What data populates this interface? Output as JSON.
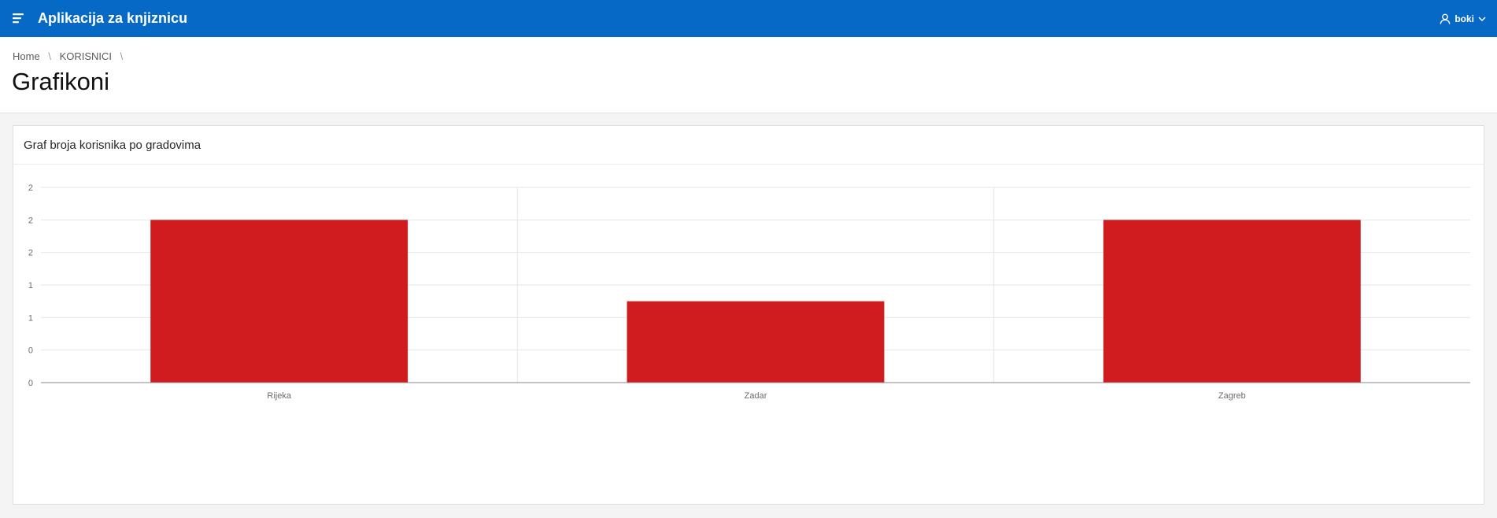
{
  "app": {
    "title": "Aplikacija za knjiznicu",
    "user": "boki",
    "header_color": "#0669c6"
  },
  "breadcrumb": {
    "items": [
      "Home",
      "KORISNICI"
    ]
  },
  "page": {
    "title": "Grafikoni"
  },
  "region": {
    "title": "Graf broja korisnika po gradovima"
  },
  "chart_data": {
    "type": "bar",
    "title": "",
    "xlabel": "",
    "ylabel": "",
    "categories": [
      "Rijeka",
      "Zadar",
      "Zagreb"
    ],
    "values": [
      2,
      1,
      2
    ],
    "ytick_labels": [
      "0",
      "0",
      "1",
      "1",
      "2",
      "2",
      "2"
    ],
    "bar_color": "#d01c1f",
    "grid": true,
    "legend": "none"
  }
}
